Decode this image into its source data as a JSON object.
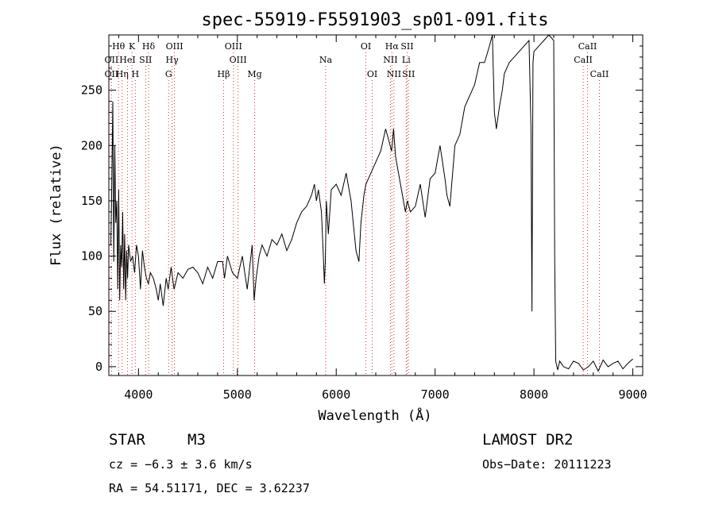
{
  "chart_data": {
    "type": "line",
    "title": "spec-55919-F5591903_sp01-091.fits",
    "xlabel": "Wavelength (Å)",
    "ylabel": "Flux (relative)",
    "xlim": [
      3700,
      9100
    ],
    "ylim": [
      -8,
      300
    ],
    "xticks": [
      4000,
      5000,
      6000,
      7000,
      8000,
      9000
    ],
    "yticks": [
      0,
      50,
      100,
      150,
      200,
      250
    ],
    "grid": false,
    "spectrum_color": "#000000",
    "line_marker_color": "#e03030",
    "series": [
      {
        "x": [
          3720,
          3730,
          3740,
          3750,
          3760,
          3770,
          3780,
          3790,
          3800,
          3810,
          3820,
          3830,
          3840,
          3850,
          3860,
          3870,
          3880,
          3890,
          3900,
          3920,
          3940,
          3960,
          3980,
          4000,
          4020,
          4040,
          4060,
          4080,
          4100,
          4120,
          4150,
          4180,
          4200,
          4220,
          4250,
          4280,
          4300,
          4330,
          4360,
          4400,
          4450,
          4500,
          4550,
          4600,
          4650,
          4700,
          4750,
          4800,
          4850,
          4870,
          4900,
          4950,
          5000,
          5050,
          5100,
          5150,
          5170,
          5190,
          5220,
          5250,
          5300,
          5350,
          5400,
          5450,
          5500,
          5550,
          5600,
          5650,
          5700,
          5750,
          5780,
          5800,
          5820,
          5850,
          5870,
          5880,
          5890,
          5900,
          5920,
          5950,
          6000,
          6050,
          6100,
          6150,
          6200,
          6230,
          6250,
          6280,
          6300,
          6350,
          6400,
          6450,
          6500,
          6530,
          6560,
          6580,
          6600,
          6650,
          6700,
          6720,
          6750,
          6800,
          6850,
          6900,
          6950,
          7000,
          7050,
          7100,
          7120,
          7150,
          7200,
          7250,
          7300,
          7350,
          7400,
          7450,
          7500,
          7550,
          7580,
          7600,
          7620,
          7650,
          7680,
          7700,
          7750,
          7800,
          7850,
          7900,
          7950,
          7970,
          7980,
          7990,
          8000,
          8050,
          8100,
          8150,
          8200,
          8210,
          8220,
          8240,
          8260,
          8300,
          8350,
          8400,
          8450,
          8500,
          8550,
          8600,
          8650,
          8700,
          8750,
          8800,
          8850,
          8900,
          8950,
          9000
        ],
        "y": [
          110,
          165,
          240,
          95,
          200,
          130,
          150,
          70,
          160,
          60,
          110,
          90,
          140,
          70,
          120,
          60,
          105,
          80,
          110,
          95,
          100,
          85,
          110,
          100,
          70,
          105,
          90,
          80,
          75,
          85,
          80,
          70,
          60,
          75,
          55,
          80,
          70,
          90,
          70,
          85,
          80,
          88,
          90,
          85,
          75,
          90,
          80,
          95,
          95,
          80,
          100,
          85,
          80,
          100,
          70,
          110,
          60,
          80,
          100,
          110,
          100,
          115,
          110,
          120,
          105,
          115,
          130,
          140,
          145,
          155,
          165,
          150,
          160,
          140,
          100,
          75,
          95,
          150,
          120,
          160,
          165,
          155,
          175,
          150,
          105,
          95,
          130,
          155,
          165,
          175,
          185,
          195,
          215,
          205,
          195,
          215,
          190,
          165,
          140,
          150,
          140,
          145,
          165,
          135,
          170,
          175,
          200,
          170,
          155,
          145,
          200,
          210,
          235,
          245,
          255,
          275,
          275,
          290,
          300,
          230,
          215,
          235,
          250,
          265,
          275,
          280,
          285,
          290,
          295,
          215,
          50,
          275,
          285,
          290,
          295,
          300,
          295,
          100,
          5,
          -3,
          5,
          0,
          -2,
          5,
          3,
          -3,
          0,
          5,
          -4,
          6,
          0,
          3,
          5,
          -2,
          3,
          7
        ]
      }
    ],
    "annotations": [
      {
        "label": "Hθ",
        "row": 1,
        "wavelength": 3798
      },
      {
        "label": "K",
        "row": 1,
        "wavelength": 3934
      },
      {
        "label": "Hδ",
        "row": 1,
        "wavelength": 4102
      },
      {
        "label": "OIII",
        "row": 1,
        "wavelength": 4364
      },
      {
        "label": "OIII",
        "row": 1,
        "wavelength": 4960
      },
      {
        "label": "OI",
        "row": 1,
        "wavelength": 6300
      },
      {
        "label": "Hα",
        "row": 1,
        "wavelength": 6563
      },
      {
        "label": "SII",
        "row": 1,
        "wavelength": 6717
      },
      {
        "label": "CaII",
        "row": 1,
        "wavelength": 8542
      },
      {
        "label": "OII",
        "row": 2,
        "wavelength": 3727
      },
      {
        "label": "HeI",
        "row": 2,
        "wavelength": 3889
      },
      {
        "label": "SII",
        "row": 2,
        "wavelength": 4072
      },
      {
        "label": "Hγ",
        "row": 2,
        "wavelength": 4340
      },
      {
        "label": "OIII",
        "row": 2,
        "wavelength": 5007
      },
      {
        "label": "NII",
        "row": 2,
        "wavelength": 6548
      },
      {
        "label": "Li",
        "row": 2,
        "wavelength": 6708
      },
      {
        "label": "CaII",
        "row": 2,
        "wavelength": 8498
      },
      {
        "label": "OII",
        "row": 3,
        "wavelength": 3727
      },
      {
        "label": "Hη",
        "row": 3,
        "wavelength": 3835
      },
      {
        "label": "H",
        "row": 3,
        "wavelength": 3968
      },
      {
        "label": "G",
        "row": 3,
        "wavelength": 4305
      },
      {
        "label": "Hβ",
        "row": 3,
        "wavelength": 4861
      },
      {
        "label": "Mg",
        "row": 3,
        "wavelength": 5175
      },
      {
        "label": "Na",
        "row": 2,
        "wavelength": 5893
      },
      {
        "label": "OI",
        "row": 3,
        "wavelength": 6364
      },
      {
        "label": "NII",
        "row": 3,
        "wavelength": 6584
      },
      {
        "label": "SII",
        "row": 3,
        "wavelength": 6731
      },
      {
        "label": "CaII",
        "row": 3,
        "wavelength": 8662
      }
    ],
    "info": {
      "object_class": "STAR",
      "subclass": "M3",
      "survey": "LAMOST DR2",
      "redshift_line": "cz = −6.3 ± 3.6 km/s",
      "obs_date_line": "Obs−Date: 20111223",
      "coords_line": "RA =  54.51171, DEC =    3.62237"
    }
  }
}
